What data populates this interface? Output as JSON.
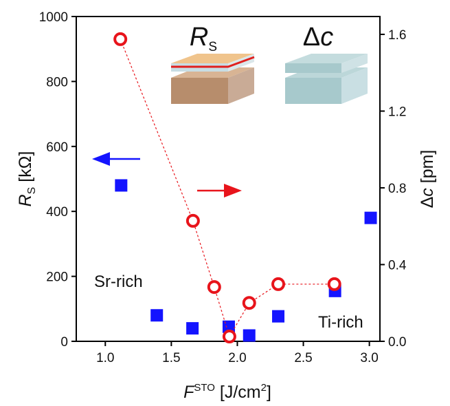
{
  "chart_data": {
    "type": "scatter",
    "x_label": [
      "F",
      "STO",
      " [J/cm",
      "2",
      "]"
    ],
    "y_label": [
      "R",
      "S",
      " [kΩ]"
    ],
    "y2_label": [
      "Δ",
      "c",
      " [pm]"
    ],
    "xlim": [
      0.78,
      3.08
    ],
    "xticks": [
      {
        "value": 1,
        "label": "1.0"
      },
      1.5,
      {
        "value": 2,
        "label": "2.0"
      },
      2.5,
      {
        "value": 3,
        "label": "3.0"
      }
    ],
    "ylim": [
      0,
      1000
    ],
    "yticks": [
      0,
      200,
      400,
      600,
      800,
      1000
    ],
    "y2lim": [
      0,
      1.693
    ],
    "y2ticks": [
      {
        "value": 0,
        "label": "0.0"
      },
      0.4,
      0.8,
      1.2,
      1.6
    ],
    "series": [
      {
        "marker": "square",
        "color": "#1414ff",
        "x": [
          1.12,
          1.39,
          1.66,
          1.935,
          2.09,
          2.31,
          2.74,
          3.01
        ],
        "values": [
          480,
          80,
          40,
          45,
          18,
          77,
          155,
          380
        ]
      },
      {
        "axis": "y2",
        "marker": "circle",
        "color": "#e8141b",
        "x": [
          1.114,
          1.664,
          1.825,
          1.94,
          2.09,
          2.31,
          2.735
        ],
        "values": [
          1.575,
          0.628,
          0.283,
          0.025,
          0.2,
          0.298,
          0.298
        ]
      }
    ],
    "annotations": [
      "Sr-rich",
      "Ti-rich"
    ],
    "inset_labels": [
      [
        "R",
        "S"
      ],
      [
        "Δ",
        "c"
      ]
    ]
  }
}
